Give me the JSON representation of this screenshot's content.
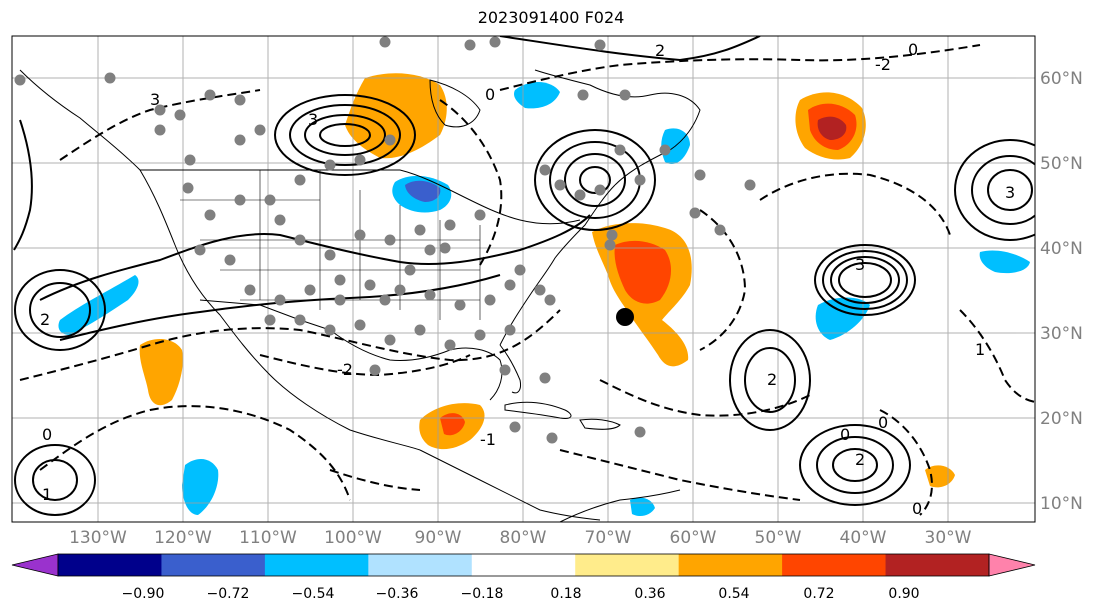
{
  "title": "2023091400 F024",
  "chart_data": {
    "type": "map",
    "title": "2023091400 F024",
    "lon_labels": [
      "130°W",
      "120°W",
      "110°W",
      "100°W",
      "90°W",
      "80°W",
      "70°W",
      "60°W",
      "50°W",
      "40°W",
      "30°W"
    ],
    "lat_labels": [
      "60°N",
      "50°N",
      "40°N",
      "30°N",
      "20°N",
      "10°N"
    ],
    "colorbar": {
      "ticks": [
        "−0.90",
        "−0.72",
        "−0.54",
        "−0.36",
        "−0.18",
        "0.18",
        "0.36",
        "0.54",
        "0.72",
        "0.90"
      ],
      "colors": [
        "#9a32cd",
        "#00008b",
        "#3a5fcd",
        "#00bfff",
        "#b0e2ff",
        "#ffffff",
        "#ffec8b",
        "#ffa500",
        "#ff4500",
        "#b22222",
        "#ff82ab"
      ],
      "extend": "both"
    },
    "contour_labels": [
      "0",
      "-1",
      "-2",
      "1",
      "2",
      "3"
    ],
    "marker": {
      "lon": -67.5,
      "lat": 32.0,
      "description": "black dot"
    }
  }
}
